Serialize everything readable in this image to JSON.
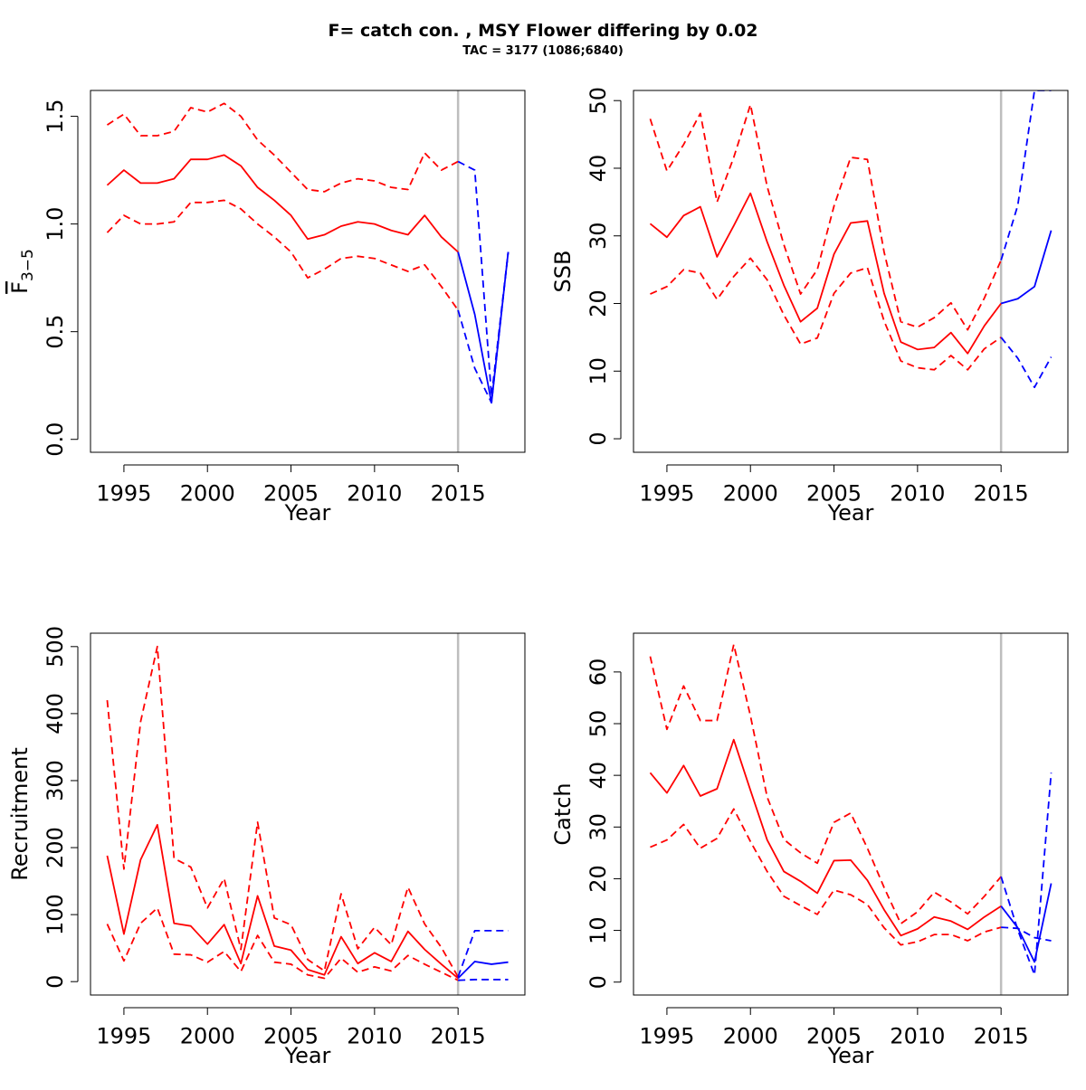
{
  "figure": {
    "title": "F= catch con. , MSY Flower differing by 0.02",
    "subtitle": "TAC = 3177 (1086;6840)"
  },
  "colors": {
    "history": "#ff0000",
    "forecast": "#0000ff",
    "divider": "#bebebe",
    "axis": "#000000"
  },
  "chart_data": [
    {
      "type": "line",
      "id": "fbar",
      "xlabel": "Year",
      "ylabel": "F",
      "ylabel_subscript": "3−5",
      "ylabel_overline": true,
      "xlim": [
        1993,
        2019
      ],
      "ylim": [
        -0.06,
        1.62
      ],
      "xticks": [
        1995,
        2000,
        2005,
        2010,
        2015
      ],
      "yticks": [
        0.0,
        0.5,
        1.0,
        1.5
      ],
      "ytick_labels": [
        "0.0",
        "0.5",
        "1.0",
        "1.5"
      ],
      "divider_x": 2015,
      "grid": false,
      "legend": "none",
      "series": [
        {
          "role": "estimate",
          "color": "#ff0000",
          "dash": "solid",
          "x": [
            1994,
            1995,
            1996,
            1997,
            1998,
            1999,
            2000,
            2001,
            2002,
            2003,
            2004,
            2005,
            2006,
            2007,
            2008,
            2009,
            2010,
            2011,
            2012,
            2013,
            2014,
            2015
          ],
          "values": [
            1.18,
            1.25,
            1.19,
            1.19,
            1.21,
            1.3,
            1.3,
            1.32,
            1.27,
            1.17,
            1.11,
            1.04,
            0.93,
            0.95,
            0.99,
            1.01,
            1.0,
            0.97,
            0.95,
            1.04,
            0.94,
            0.87
          ]
        },
        {
          "role": "upper",
          "color": "#ff0000",
          "dash": "dashed",
          "x": [
            1994,
            1995,
            1996,
            1997,
            1998,
            1999,
            2000,
            2001,
            2002,
            2003,
            2004,
            2005,
            2006,
            2007,
            2008,
            2009,
            2010,
            2011,
            2012,
            2013,
            2014,
            2015
          ],
          "values": [
            1.46,
            1.51,
            1.41,
            1.41,
            1.43,
            1.54,
            1.52,
            1.56,
            1.5,
            1.39,
            1.32,
            1.24,
            1.16,
            1.15,
            1.19,
            1.21,
            1.2,
            1.17,
            1.16,
            1.33,
            1.25,
            1.29
          ]
        },
        {
          "role": "lower",
          "color": "#ff0000",
          "dash": "dashed",
          "x": [
            1994,
            1995,
            1996,
            1997,
            1998,
            1999,
            2000,
            2001,
            2002,
            2003,
            2004,
            2005,
            2006,
            2007,
            2008,
            2009,
            2010,
            2011,
            2012,
            2013,
            2014,
            2015
          ],
          "values": [
            0.96,
            1.04,
            1.0,
            1.0,
            1.01,
            1.1,
            1.1,
            1.11,
            1.07,
            1.0,
            0.94,
            0.87,
            0.75,
            0.79,
            0.84,
            0.85,
            0.84,
            0.81,
            0.78,
            0.81,
            0.71,
            0.6
          ]
        },
        {
          "role": "forecast",
          "color": "#0000ff",
          "dash": "solid",
          "x": [
            2015,
            2016,
            2017,
            2018
          ],
          "values": [
            0.87,
            0.58,
            0.17,
            0.87
          ]
        },
        {
          "role": "forecast-upper",
          "color": "#0000ff",
          "dash": "dashed",
          "x": [
            2015,
            2016,
            2017,
            2018
          ],
          "values": [
            1.29,
            1.25,
            0.2,
            0.87
          ]
        },
        {
          "role": "forecast-lower",
          "color": "#0000ff",
          "dash": "dashed",
          "x": [
            2015,
            2016,
            2017,
            2018
          ],
          "values": [
            0.6,
            0.33,
            0.17,
            0.87
          ]
        }
      ]
    },
    {
      "type": "line",
      "id": "ssb",
      "xlabel": "Year",
      "ylabel": "SSB",
      "xlim": [
        1993,
        2019
      ],
      "ylim": [
        -2,
        51.5
      ],
      "xticks": [
        1995,
        2000,
        2005,
        2010,
        2015
      ],
      "yticks": [
        0,
        10,
        20,
        30,
        40,
        50
      ],
      "ytick_labels": [
        "0",
        "10",
        "20",
        "30",
        "40",
        "50"
      ],
      "divider_x": 2015,
      "grid": false,
      "legend": "none",
      "series": [
        {
          "role": "estimate",
          "color": "#ff0000",
          "dash": "solid",
          "x": [
            1994,
            1995,
            1996,
            1997,
            1998,
            1999,
            2000,
            2001,
            2002,
            2003,
            2004,
            2005,
            2006,
            2007,
            2008,
            2009,
            2010,
            2011,
            2012,
            2013,
            2014,
            2015
          ],
          "values": [
            31.8,
            29.8,
            33.0,
            34.3,
            26.9,
            31.5,
            36.3,
            29.1,
            22.7,
            17.3,
            19.3,
            27.3,
            31.9,
            32.2,
            21.5,
            14.3,
            13.2,
            13.5,
            15.7,
            12.6,
            16.7,
            20.0
          ]
        },
        {
          "role": "upper",
          "color": "#ff0000",
          "dash": "dashed",
          "x": [
            1994,
            1995,
            1996,
            1997,
            1998,
            1999,
            2000,
            2001,
            2002,
            2003,
            2004,
            2005,
            2006,
            2007,
            2008,
            2009,
            2010,
            2011,
            2012,
            2013,
            2014,
            2015
          ],
          "values": [
            47.3,
            39.6,
            43.5,
            48.1,
            35.0,
            41.6,
            49.4,
            37.3,
            28.7,
            21.4,
            25.0,
            34.4,
            41.6,
            41.3,
            27.6,
            17.3,
            16.5,
            17.9,
            20.1,
            16.1,
            20.8,
            26.4
          ]
        },
        {
          "role": "lower",
          "color": "#ff0000",
          "dash": "dashed",
          "x": [
            1994,
            1995,
            1996,
            1997,
            1998,
            1999,
            2000,
            2001,
            2002,
            2003,
            2004,
            2005,
            2006,
            2007,
            2008,
            2009,
            2010,
            2011,
            2012,
            2013,
            2014,
            2015
          ],
          "values": [
            21.4,
            22.5,
            25.0,
            24.5,
            20.6,
            24.0,
            26.7,
            23.5,
            18.3,
            14.0,
            14.9,
            21.5,
            24.5,
            25.3,
            17.4,
            11.5,
            10.5,
            10.2,
            12.3,
            10.2,
            13.3,
            15.0
          ]
        },
        {
          "role": "forecast",
          "color": "#0000ff",
          "dash": "solid",
          "x": [
            2015,
            2016,
            2017,
            2018
          ],
          "values": [
            20.0,
            20.7,
            22.5,
            30.8
          ]
        },
        {
          "role": "forecast-upper",
          "color": "#0000ff",
          "dash": "dashed",
          "x": [
            2015,
            2016,
            2017,
            2018
          ],
          "values": [
            26.4,
            34.5,
            51.5,
            51.5
          ]
        },
        {
          "role": "forecast-lower",
          "color": "#0000ff",
          "dash": "dashed",
          "x": [
            2015,
            2016,
            2017,
            2018
          ],
          "values": [
            15.0,
            11.9,
            7.6,
            12.1
          ]
        }
      ]
    },
    {
      "type": "line",
      "id": "recruitment",
      "xlabel": "Year",
      "ylabel": "Recruitment",
      "xlim": [
        1993,
        2019
      ],
      "ylim": [
        -20,
        520
      ],
      "xticks": [
        1995,
        2000,
        2005,
        2010,
        2015
      ],
      "yticks": [
        0,
        100,
        200,
        300,
        400,
        500
      ],
      "ytick_labels": [
        "0",
        "100",
        "200",
        "300",
        "400",
        "500"
      ],
      "divider_x": 2015,
      "grid": false,
      "legend": "none",
      "series": [
        {
          "role": "estimate",
          "color": "#ff0000",
          "dash": "solid",
          "x": [
            1994,
            1995,
            1996,
            1997,
            1998,
            1999,
            2000,
            2001,
            2002,
            2003,
            2004,
            2005,
            2006,
            2007,
            2008,
            2009,
            2010,
            2011,
            2012,
            2013,
            2014,
            2015
          ],
          "values": [
            188,
            71,
            182,
            234,
            87,
            83,
            56,
            85,
            27,
            128,
            53,
            47,
            18,
            10,
            67,
            27,
            43,
            30,
            75,
            48,
            26,
            5
          ]
        },
        {
          "role": "upper",
          "color": "#ff0000",
          "dash": "dashed",
          "x": [
            1994,
            1995,
            1996,
            1997,
            1998,
            1999,
            2000,
            2001,
            2002,
            2003,
            2004,
            2005,
            2006,
            2007,
            2008,
            2009,
            2010,
            2011,
            2012,
            2013,
            2014,
            2015
          ],
          "values": [
            420,
            168,
            388,
            500,
            184,
            171,
            110,
            154,
            48,
            238,
            95,
            85,
            33,
            16,
            131,
            49,
            81,
            55,
            141,
            86,
            51,
            7
          ]
        },
        {
          "role": "lower",
          "color": "#ff0000",
          "dash": "dashed",
          "x": [
            1994,
            1995,
            1996,
            1997,
            1998,
            1999,
            2000,
            2001,
            2002,
            2003,
            2004,
            2005,
            2006,
            2007,
            2008,
            2009,
            2010,
            2011,
            2012,
            2013,
            2014,
            2015
          ],
          "values": [
            86,
            31,
            87,
            110,
            41,
            40,
            29,
            45,
            15,
            69,
            29,
            26,
            10,
            5,
            35,
            14,
            22,
            16,
            39,
            26,
            14,
            2
          ]
        },
        {
          "role": "forecast",
          "color": "#0000ff",
          "dash": "solid",
          "x": [
            2015,
            2016,
            2017,
            2018
          ],
          "values": [
            5,
            30,
            26,
            29
          ]
        },
        {
          "role": "forecast-upper",
          "color": "#0000ff",
          "dash": "dashed",
          "x": [
            2015,
            2016,
            2017,
            2018
          ],
          "values": [
            7,
            76,
            76,
            76
          ]
        },
        {
          "role": "forecast-lower",
          "color": "#0000ff",
          "dash": "dashed",
          "x": [
            2015,
            2016,
            2017,
            2018
          ],
          "values": [
            2,
            3,
            3,
            3
          ]
        }
      ]
    },
    {
      "type": "line",
      "id": "catch",
      "xlabel": "Year",
      "ylabel": "Catch",
      "xlim": [
        1993,
        2019
      ],
      "ylim": [
        -2.5,
        67.5
      ],
      "xticks": [
        1995,
        2000,
        2005,
        2010,
        2015
      ],
      "yticks": [
        0,
        10,
        20,
        30,
        40,
        50,
        60
      ],
      "ytick_labels": [
        "0",
        "10",
        "20",
        "30",
        "40",
        "50",
        "60"
      ],
      "divider_x": 2015,
      "grid": false,
      "legend": "none",
      "series": [
        {
          "role": "estimate",
          "color": "#ff0000",
          "dash": "solid",
          "x": [
            1994,
            1995,
            1996,
            1997,
            1998,
            1999,
            2000,
            2001,
            2002,
            2003,
            2004,
            2005,
            2006,
            2007,
            2008,
            2009,
            2010,
            2011,
            2012,
            2013,
            2014,
            2015
          ],
          "values": [
            40.5,
            36.6,
            41.9,
            36.0,
            37.4,
            46.9,
            37.1,
            27.5,
            21.4,
            19.5,
            17.2,
            23.5,
            23.6,
            19.7,
            14.0,
            9.0,
            10.3,
            12.6,
            11.8,
            10.2,
            12.6,
            14.7
          ]
        },
        {
          "role": "upper",
          "color": "#ff0000",
          "dash": "dashed",
          "x": [
            1994,
            1995,
            1996,
            1997,
            1998,
            1999,
            2000,
            2001,
            2002,
            2003,
            2004,
            2005,
            2006,
            2007,
            2008,
            2009,
            2010,
            2011,
            2012,
            2013,
            2014,
            2015
          ],
          "values": [
            63.0,
            48.9,
            57.3,
            50.6,
            50.6,
            65.3,
            51.5,
            35.8,
            27.6,
            25.0,
            23.0,
            30.9,
            32.7,
            25.9,
            18.3,
            11.3,
            13.6,
            17.4,
            15.5,
            13.2,
            16.6,
            20.4
          ]
        },
        {
          "role": "lower",
          "color": "#ff0000",
          "dash": "dashed",
          "x": [
            1994,
            1995,
            1996,
            1997,
            1998,
            1999,
            2000,
            2001,
            2002,
            2003,
            2004,
            2005,
            2006,
            2007,
            2008,
            2009,
            2010,
            2011,
            2012,
            2013,
            2014,
            2015
          ],
          "values": [
            26.1,
            27.5,
            30.5,
            25.9,
            27.8,
            33.5,
            27.2,
            21.4,
            16.6,
            14.8,
            13.1,
            17.8,
            16.9,
            15.0,
            10.5,
            7.2,
            7.8,
            9.2,
            9.2,
            8.0,
            9.7,
            10.6
          ]
        },
        {
          "role": "forecast",
          "color": "#0000ff",
          "dash": "solid",
          "x": [
            2015,
            2016,
            2017,
            2018
          ],
          "values": [
            14.7,
            10.5,
            3.9,
            19.1
          ]
        },
        {
          "role": "forecast-upper",
          "color": "#0000ff",
          "dash": "dashed",
          "x": [
            2015,
            2016,
            2017,
            2018
          ],
          "values": [
            20.4,
            10.1,
            1.4,
            40.5
          ]
        },
        {
          "role": "forecast-lower",
          "color": "#0000ff",
          "dash": "dashed",
          "x": [
            2015,
            2016,
            2017,
            2018
          ],
          "values": [
            10.6,
            10.4,
            8.6,
            8.0
          ]
        }
      ]
    }
  ]
}
